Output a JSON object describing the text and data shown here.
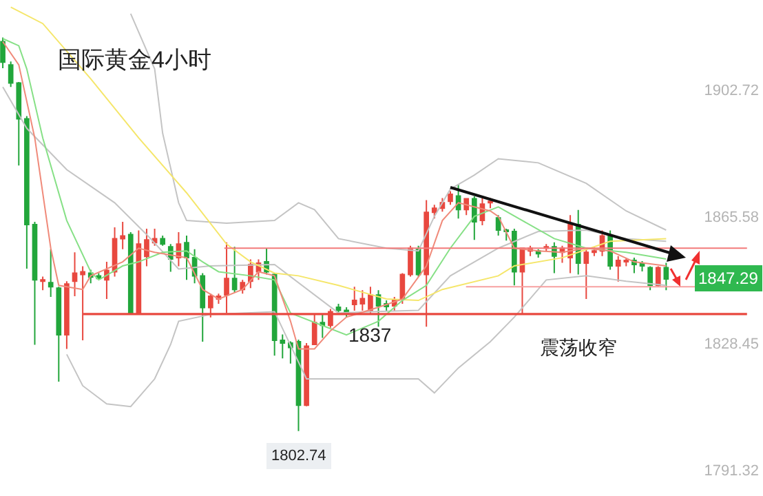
{
  "chart_data": {
    "type": "candlestick",
    "title": "国际黄金4小时",
    "categories": [
      null,
      null,
      null,
      null,
      null,
      null,
      null,
      null,
      null,
      null,
      null,
      null,
      null,
      null,
      null,
      null,
      null,
      null,
      null,
      null,
      null,
      null,
      null,
      null,
      null,
      null,
      null,
      null,
      null,
      null,
      null,
      null,
      null,
      null,
      null,
      null,
      null,
      null,
      null,
      null,
      null,
      null,
      null,
      null,
      null,
      null,
      null,
      null,
      null,
      null,
      null,
      null,
      null,
      null,
      null,
      null,
      null,
      null,
      null,
      null,
      null,
      null,
      null,
      null,
      null,
      null,
      null,
      null,
      null,
      null,
      null,
      null,
      null,
      null,
      null,
      null,
      null,
      null,
      null,
      null,
      null,
      null,
      null,
      null
    ],
    "ohlc": [
      [
        1916.8,
        1918,
        1909,
        1910.8
      ],
      [
        1910,
        1911,
        1903.5,
        1904.7
      ],
      [
        1904.7,
        1905,
        1880.5,
        1894.2
      ],
      [
        1894.2,
        1895,
        1850.3,
        1863.2
      ],
      [
        1863.2,
        1864,
        1828,
        1847.0
      ],
      [
        1846.6,
        1848,
        1844,
        1847.0
      ],
      [
        1846.2,
        1856,
        1842,
        1845.0
      ],
      [
        1844.6,
        1845,
        1817.2,
        1830.9
      ],
      [
        1830.9,
        1846.6,
        1826.8,
        1845.8
      ],
      [
        1846.6,
        1855.1,
        1842.2,
        1849.0
      ],
      [
        1848.6,
        1851,
        1829.3,
        1849.4
      ],
      [
        1849.0,
        1850,
        1846,
        1847.8
      ],
      [
        1848.2,
        1849,
        1847,
        1847.4
      ],
      [
        1847.0,
        1852.3,
        1841.4,
        1849.8
      ],
      [
        1849.4,
        1862.4,
        1848,
        1859.1
      ],
      [
        1859.1,
        1864,
        1856,
        1859.9
      ],
      [
        1860.3,
        1861,
        1837.3,
        1837.3
      ],
      [
        1837.3,
        1861.5,
        1837.3,
        1857.5
      ],
      [
        1853.9,
        1862,
        1851,
        1858.7
      ],
      [
        1857.9,
        1862,
        1857,
        1859.1
      ],
      [
        1859.1,
        1860,
        1857,
        1857.5
      ],
      [
        1856.7,
        1857.5,
        1849.4,
        1853.1
      ],
      [
        1853.5,
        1861,
        1851,
        1857.5
      ],
      [
        1857.9,
        1860,
        1847,
        1853.5
      ],
      [
        1853.5,
        1856,
        1846,
        1848.2
      ],
      [
        1848.2,
        1849,
        1828.9,
        1838.9
      ],
      [
        1838.9,
        1843,
        1836,
        1842.2
      ],
      [
        1841.4,
        1843,
        1840,
        1842.2
      ],
      [
        1842.6,
        1858,
        1837.3,
        1847.4
      ],
      [
        1847.4,
        1856.7,
        1843.4,
        1844.2
      ],
      [
        1844.2,
        1847,
        1843,
        1846.2
      ],
      [
        1846.6,
        1853,
        1844.6,
        1851.5
      ],
      [
        1849.4,
        1853,
        1847,
        1851.9
      ],
      [
        1852.3,
        1856.3,
        1848.6,
        1849.4
      ],
      [
        1848.6,
        1849,
        1824.8,
        1829.3
      ],
      [
        1829.3,
        1831,
        1824,
        1828.5
      ],
      [
        1828.5,
        1829,
        1822.5,
        1827.2
      ],
      [
        1828.9,
        1829.5,
        1802.74,
        1810.3
      ],
      [
        1810.3,
        1828.5,
        1810,
        1827.6
      ],
      [
        1828.1,
        1837,
        1828,
        1834.5
      ],
      [
        1834.5,
        1837,
        1830,
        1833.7
      ],
      [
        1833.7,
        1838.5,
        1833,
        1837.7
      ],
      [
        1839,
        1840,
        1837.5,
        1838.1
      ],
      [
        1838.1,
        1839,
        1836,
        1837.3
      ],
      [
        1839.8,
        1845,
        1838,
        1841.0
      ],
      [
        1840,
        1844,
        1838,
        1841.5
      ],
      [
        1838.1,
        1845,
        1837,
        1842.6
      ],
      [
        1842.6,
        1844,
        1833.3,
        1839.4
      ],
      [
        1840,
        1841,
        1838,
        1839.2
      ],
      [
        1839.4,
        1842,
        1838,
        1841.0
      ],
      [
        1841.4,
        1849,
        1840,
        1848.6
      ],
      [
        1848.6,
        1857,
        1848,
        1856.3
      ],
      [
        1855.9,
        1857,
        1848,
        1848.6
      ],
      [
        1848.6,
        1870.4,
        1833.3,
        1866.8
      ],
      [
        1866.8,
        1869,
        1865,
        1868.0
      ],
      [
        1868.0,
        1871,
        1867,
        1869.6
      ],
      [
        1870.0,
        1873,
        1869,
        1872.1
      ],
      [
        1871.6,
        1875,
        1865,
        1867.6
      ],
      [
        1867.6,
        1871,
        1866,
        1870.8
      ],
      [
        1870.8,
        1871.5,
        1858.7,
        1864.0
      ],
      [
        1864.4,
        1871,
        1863,
        1869.2
      ],
      [
        1869.6,
        1871,
        1868,
        1870.0
      ],
      [
        1865.2,
        1866,
        1860,
        1861.6
      ],
      [
        1861.6,
        1862,
        1858.5,
        1861.2
      ],
      [
        1861.2,
        1862,
        1845.4,
        1849.4
      ],
      [
        1849.4,
        1856.3,
        1836.9,
        1856.3
      ],
      [
        1855.5,
        1857,
        1854,
        1856.3
      ],
      [
        1855.5,
        1856,
        1853.5,
        1854.7
      ],
      [
        1856.3,
        1857.5,
        1855.5,
        1856.7
      ],
      [
        1856.7,
        1858,
        1849,
        1854.0
      ],
      [
        1855.1,
        1857,
        1852,
        1856.3
      ],
      [
        1853.5,
        1866,
        1849,
        1863.2
      ],
      [
        1863.2,
        1867.5,
        1848.6,
        1851.9
      ],
      [
        1851.9,
        1856,
        1841.4,
        1855.1
      ],
      [
        1855.1,
        1856.5,
        1854,
        1855.5
      ],
      [
        1855.5,
        1861.5,
        1854,
        1859.9
      ],
      [
        1859.9,
        1861.5,
        1850,
        1851.1
      ],
      [
        1851.1,
        1854,
        1846.5,
        1852.7
      ],
      [
        1852.3,
        1853.5,
        1851,
        1852.7
      ],
      [
        1852.7,
        1853.5,
        1849,
        1851.5
      ],
      [
        1851.9,
        1852.5,
        1849.5,
        1851.1
      ],
      [
        1850.6,
        1851,
        1844,
        1845.4
      ],
      [
        1845.4,
        1851,
        1845,
        1850.6
      ],
      [
        1850.6,
        1852,
        1844,
        1847.29
      ]
    ],
    "series": [
      {
        "type": "line",
        "color": "#c4c4c4",
        "values": [
          null,
          null,
          null,
          null,
          null,
          null,
          null,
          null,
          null,
          null,
          null,
          null,
          null,
          null,
          null,
          null,
          1925,
          null,
          null,
          1908.8,
          1890,
          null,
          1869.6,
          1864.4,
          null,
          null,
          null,
          null,
          1863.6,
          null,
          null,
          null,
          null,
          null,
          1864.4,
          null,
          null,
          1869.6,
          null,
          1867.6,
          null,
          null,
          1859.1,
          null,
          null,
          null,
          null,
          null,
          1856.3,
          null,
          null,
          null,
          1855.5,
          null,
          1865.6,
          null,
          1873.6,
          null,
          null,
          1877.7,
          null,
          null,
          1882.5,
          null,
          null,
          null,
          null,
          1881.3,
          null,
          null,
          null,
          null,
          null,
          1875.3,
          null,
          null,
          null,
          null,
          1867.2,
          null,
          null,
          null,
          null,
          1861.6
        ]
      },
      {
        "type": "line",
        "color": "#c4c4c4",
        "values": [
          1903.5,
          null,
          null,
          1891.4,
          null,
          null,
          null,
          null,
          1879.3,
          null,
          null,
          null,
          null,
          null,
          1869.6,
          null,
          null,
          null,
          1860.3,
          null,
          null,
          null,
          1850.2,
          null,
          null,
          null,
          1851.1,
          null,
          null,
          null,
          null,
          null,
          null,
          null,
          1851.5,
          null,
          null,
          null,
          null,
          null,
          null,
          null,
          1837.3,
          null,
          null,
          null,
          1837.7,
          null,
          null,
          null,
          null,
          null,
          1838.1,
          null,
          null,
          null,
          1848.2,
          null,
          null,
          null,
          null,
          null,
          1856.3,
          null,
          null,
          null,
          null,
          1861.2,
          null,
          null,
          null,
          null,
          null,
          1861.6,
          null,
          null,
          null,
          null,
          1859.1,
          null,
          null,
          null,
          null,
          1858.3
        ]
      },
      {
        "type": "line",
        "color": "#c4c4c4",
        "values": [
          null,
          null,
          null,
          null,
          null,
          null,
          null,
          null,
          1825.2,
          null,
          1816.0,
          null,
          null,
          1810.7,
          null,
          null,
          1809.9,
          null,
          null,
          1818.0,
          null,
          1828.1,
          1834.9,
          null,
          null,
          null,
          1836.9,
          null,
          null,
          null,
          null,
          null,
          null,
          null,
          1837.7,
          null,
          null,
          null,
          1818.0,
          null,
          null,
          null,
          null,
          null,
          null,
          1818.0,
          null,
          null,
          null,
          null,
          null,
          null,
          1818.0,
          null,
          1813.9,
          null,
          null,
          1821.2,
          null,
          null,
          null,
          1828.9,
          null,
          null,
          1836.1,
          null,
          null,
          null,
          1847.0,
          null,
          null,
          null,
          null,
          1848.2,
          null,
          null,
          null,
          null,
          1846.6,
          null,
          null,
          null,
          null,
          1845.4
        ]
      },
      {
        "type": "line",
        "color": "#f5e66a",
        "values": [
          null,
          1926.9,
          null,
          null,
          null,
          1922.1,
          null,
          null,
          null,
          null,
          null,
          1905.9,
          null,
          null,
          null,
          null,
          null,
          1888.6,
          null,
          null,
          null,
          null,
          null,
          1872.5,
          null,
          null,
          null,
          null,
          1857.5,
          null,
          null,
          1852.3,
          null,
          null,
          1849.0,
          null,
          null,
          1848.2,
          null,
          null,
          null,
          null,
          1845.4,
          null,
          null,
          null,
          null,
          null,
          1841.4,
          null,
          null,
          null,
          1841.0,
          null,
          null,
          1844.2,
          null,
          null,
          null,
          null,
          null,
          null,
          1848.2,
          null,
          1851.1,
          null,
          null,
          null,
          null,
          null,
          1853.5,
          null,
          null,
          null,
          null,
          null,
          1858.3,
          null,
          null,
          null,
          null,
          null,
          null,
          1859.1
        ]
      },
      {
        "type": "line",
        "color": "#86e086",
        "values": [
          1917.7,
          null,
          1915.6,
          1908.8,
          null,
          1888.6,
          null,
          null,
          1864.4,
          null,
          null,
          1849.4,
          1847.0,
          null,
          null,
          1851.1,
          null,
          1852.3,
          null,
          null,
          1855.1,
          null,
          null,
          1855.5,
          null,
          1852.3,
          null,
          1849.4,
          null,
          null,
          null,
          1848.2,
          null,
          null,
          1847.0,
          null,
          1837.3,
          null,
          null,
          null,
          null,
          null,
          null,
          1830.9,
          null,
          null,
          null,
          1834.9,
          null,
          null,
          1841.0,
          null,
          null,
          1845.4,
          null,
          null,
          1856.3,
          null,
          null,
          1865.6,
          null,
          null,
          1868.4,
          null,
          null,
          1864.4,
          null,
          null,
          null,
          1859.1,
          null,
          null,
          null,
          1856.3,
          null,
          null,
          null,
          null,
          1855.1,
          null,
          null,
          null,
          null,
          1853.1
        ]
      },
      {
        "type": "line",
        "color": "#f08a7a",
        "values": [
          1916.8,
          null,
          1910.0,
          null,
          1888.6,
          null,
          1856.3,
          1845.4,
          null,
          null,
          1844.2,
          1848.2,
          null,
          null,
          null,
          1852.3,
          null,
          1856.3,
          null,
          1855.1,
          null,
          null,
          null,
          1853.5,
          null,
          1844.2,
          null,
          1841.4,
          null,
          null,
          1844.2,
          null,
          1849.4,
          null,
          1848.2,
          null,
          1834.9,
          1826.8,
          null,
          1826.8,
          null,
          1832.1,
          null,
          1836.1,
          null,
          null,
          null,
          1839.0,
          null,
          null,
          1841.4,
          null,
          null,
          1851.1,
          null,
          1864.4,
          null,
          1869.6,
          null,
          null,
          null,
          1867.2,
          1865.6,
          null,
          1856.3,
          null,
          null,
          1855.5,
          null,
          null,
          1855.1,
          null,
          null,
          1856.3,
          null,
          null,
          1855.5,
          null,
          null,
          1852.3,
          null,
          null,
          null,
          1851.1
        ]
      }
    ],
    "ref_lines": [
      {
        "axis": "y",
        "value": 1856.3,
        "color": "#f27a7a"
      },
      {
        "axis": "y",
        "value": 1837,
        "color": "#e8483f"
      },
      {
        "axis": "y",
        "value": 1845,
        "color": "#f7a0a0"
      }
    ],
    "ylim": [
      1783.7,
      1929.0
    ],
    "yticks": [
      1902.72,
      1865.58,
      1828.45,
      1791.32
    ],
    "tick_labels": "y",
    "annotations": [
      "震荡收窄",
      {
        "text": "1802.74",
        "y": 1802.74
      },
      {
        "text": "1837",
        "y": 1837
      },
      "1847.29"
    ]
  }
}
